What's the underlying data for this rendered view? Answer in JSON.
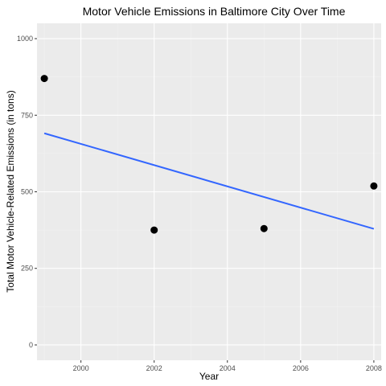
{
  "chart_data": {
    "type": "scatter",
    "title": "Motor Vehicle Emissions in Baltimore City Over Time",
    "xlabel": "Year",
    "ylabel": "Total Motor Vehicle-Related Emissions (in tons)",
    "xlim": [
      1998.8,
      2008.2
    ],
    "ylim": [
      -50,
      1050
    ],
    "x_ticks": [
      2000,
      2002,
      2004,
      2006,
      2008
    ],
    "x_tick_labels": [
      "2000",
      "2002",
      "2004",
      "2006",
      "2008"
    ],
    "y_ticks": [
      0,
      250,
      500,
      750,
      1000
    ],
    "y_tick_labels": [
      "0",
      "250",
      "500",
      "750",
      "1000"
    ],
    "grid": true,
    "legend": "none",
    "series": [
      {
        "type": "scatter",
        "x": [
          1999,
          2002,
          2005,
          2008
        ],
        "y": [
          870,
          375,
          380,
          519
        ],
        "color": "#000000"
      }
    ],
    "trend_line": {
      "method": "linear",
      "x": [
        1999,
        2008
      ],
      "y": [
        691,
        379
      ],
      "color": "#3366ff"
    }
  },
  "colors": {
    "panel_background": "#ebebeb",
    "grid_major": "#ffffff",
    "grid_minor": "#f2f2f2",
    "tick_text": "#4d4d4d",
    "tick_mark": "#333333"
  }
}
